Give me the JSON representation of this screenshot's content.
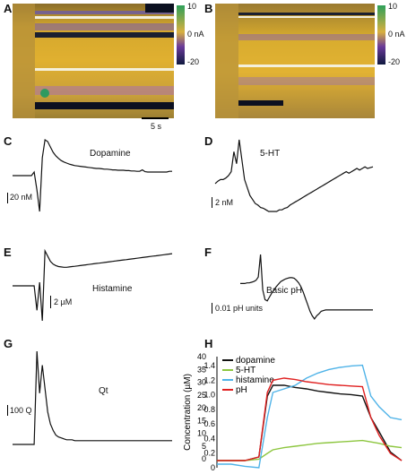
{
  "panels": {
    "A": {
      "label": "A",
      "time_scale": "5 s"
    },
    "B": {
      "label": "B"
    },
    "C": {
      "label": "C",
      "title": "Dopamine",
      "scale": "20 nM"
    },
    "D": {
      "label": "D",
      "title": "5-HT",
      "scale": "2 nM"
    },
    "E": {
      "label": "E",
      "title": "Histamine",
      "scale": "2 µM"
    },
    "F": {
      "label": "F",
      "title": "Basic pH",
      "scale": "0.01 pH units"
    },
    "G": {
      "label": "G",
      "title": "Qt",
      "scale": "100 Q"
    },
    "H": {
      "label": "H"
    }
  },
  "colorbar": {
    "top": "10",
    "mid": "0 nA",
    "bottom": "-20"
  },
  "chart_data": [
    {
      "type": "line",
      "title": "Dopamine",
      "values": [
        0,
        0,
        0,
        0,
        0,
        0,
        0,
        0,
        0.1,
        -0.4,
        -1.0,
        0.5,
        1.0,
        0.95,
        0.8,
        0.65,
        0.55,
        0.48,
        0.42,
        0.38,
        0.35,
        0.32,
        0.3,
        0.28,
        0.27,
        0.26,
        0.25,
        0.24,
        0.23,
        0.22,
        0.21,
        0.2,
        0.2,
        0.19,
        0.18,
        0.18,
        0.17,
        0.16,
        0.16,
        0.15,
        0.15,
        0.15,
        0.14,
        0.14,
        0.13,
        0.13,
        0.12,
        0.12,
        0.16,
        0.11,
        0.1,
        0.1,
        0.1,
        0.1,
        0.1,
        0.1,
        0.1,
        0.1,
        0.12,
        0.12
      ]
    },
    {
      "type": "line",
      "title": "5-HT",
      "values": [
        0.45,
        0.48,
        0.5,
        0.5,
        0.52,
        0.55,
        0.6,
        0.85,
        0.7,
        1.0,
        0.75,
        0.5,
        0.4,
        0.3,
        0.25,
        0.2,
        0.18,
        0.15,
        0.14,
        0.12,
        0.1,
        0.1,
        0.1,
        0.1,
        0.12,
        0.12,
        0.14,
        0.15,
        0.18,
        0.2,
        0.22,
        0.24,
        0.26,
        0.28,
        0.3,
        0.32,
        0.34,
        0.36,
        0.38,
        0.4,
        0.42,
        0.44,
        0.46,
        0.48,
        0.5,
        0.52,
        0.54,
        0.56,
        0.58,
        0.6,
        0.58,
        0.6,
        0.62,
        0.64,
        0.62,
        0.64,
        0.66,
        0.64,
        0.65,
        0.66
      ]
    },
    {
      "type": "line",
      "title": "Histamine",
      "values": [
        0,
        0,
        0,
        0,
        0,
        0,
        0,
        0,
        0,
        -0.7,
        0.1,
        -1.0,
        1.0,
        0.85,
        0.7,
        0.62,
        0.58,
        0.55,
        0.54,
        0.53,
        0.53,
        0.54,
        0.55,
        0.56,
        0.57,
        0.58,
        0.59,
        0.6,
        0.61,
        0.62,
        0.63,
        0.64,
        0.65,
        0.66,
        0.67,
        0.68,
        0.69,
        0.7,
        0.71,
        0.72,
        0.73,
        0.74,
        0.75,
        0.76,
        0.77,
        0.78,
        0.79,
        0.8,
        0.81,
        0.82,
        0.83,
        0.84,
        0.85,
        0.86,
        0.87,
        0.88,
        0.89,
        0.9,
        0.91,
        0.92
      ]
    },
    {
      "type": "line",
      "title": "Basic pH",
      "values": [
        0.55,
        0.55,
        0.55,
        0.56,
        0.56,
        0.57,
        0.58,
        0.6,
        0.65,
        1.0,
        0.45,
        0.3,
        0.28,
        0.34,
        0.4,
        0.45,
        0.5,
        0.54,
        0.58,
        0.6,
        0.62,
        0.63,
        0.64,
        0.64,
        0.63,
        0.6,
        0.56,
        0.5,
        0.42,
        0.32,
        0.22,
        0.12,
        0.05,
        0.0,
        0.05,
        0.08,
        0.12,
        0.13,
        0.14,
        0.14,
        0.14,
        0.14,
        0.14,
        0.14,
        0.14,
        0.14,
        0.14,
        0.14,
        0.14,
        0.14,
        0.14,
        0.14,
        0.14,
        0.14,
        0.14,
        0.14,
        0.14,
        0.14,
        0.14,
        0.14
      ]
    },
    {
      "type": "line",
      "title": "Qt",
      "values": [
        0,
        0,
        0,
        0,
        0,
        0,
        0,
        0,
        0,
        1.0,
        0.55,
        0.85,
        0.6,
        0.35,
        0.22,
        0.15,
        0.1,
        0.08,
        0.07,
        0.06,
        0.05,
        0.05,
        0.05,
        0.04,
        0.04,
        0.04,
        0.04,
        0.04,
        0.04,
        0.04,
        0.04,
        0.04,
        0.04,
        0.04,
        0.04,
        0.04,
        0.04,
        0.04,
        0.04,
        0.04,
        0.04,
        0.04,
        0.04,
        0.04,
        0.04,
        0.04,
        0.04,
        0.04,
        0.04,
        0.04,
        0.04,
        0.04,
        0.04,
        0.04,
        0.04,
        0.04,
        0.04,
        0.04,
        0.04,
        0.04
      ]
    },
    {
      "type": "line",
      "ylabel": "Concentration (µM)",
      "yticks_left": [
        "40",
        "35",
        "30",
        "25",
        "20",
        "15",
        "10",
        "5",
        "0"
      ],
      "yticks_right": [
        "1.4",
        "1.2",
        "1.0",
        "0.8",
        "0.6",
        "0.4",
        "0.2",
        "0"
      ],
      "x": [
        0,
        5,
        10,
        15,
        18,
        20,
        24,
        28,
        32,
        36,
        40,
        44,
        48,
        52,
        55,
        58,
        62,
        66
      ],
      "series": [
        {
          "name": "dopamine",
          "color": "#111111",
          "values": [
            0,
            0,
            0,
            0.05,
            0.9,
            1.05,
            1.05,
            1.02,
            1.0,
            0.97,
            0.95,
            0.93,
            0.92,
            0.9,
            0.6,
            0.4,
            0.12,
            0
          ]
        },
        {
          "name": "5-HT",
          "color": "#8dc63f",
          "values": [
            0,
            0,
            0,
            0.02,
            0.1,
            0.15,
            0.18,
            0.2,
            0.22,
            0.24,
            0.25,
            0.26,
            0.27,
            0.28,
            0.26,
            0.24,
            0.2,
            0.18
          ]
        },
        {
          "name": "histamine",
          "color": "#4fb3e8",
          "values": [
            -0.05,
            -0.05,
            -0.08,
            -0.1,
            0.6,
            0.95,
            1.0,
            1.05,
            1.15,
            1.22,
            1.27,
            1.3,
            1.32,
            1.33,
            0.9,
            0.75,
            0.6,
            0.57
          ]
        },
        {
          "name": "pH",
          "color": "#e02020",
          "values": [
            0,
            0,
            0,
            0.05,
            0.95,
            1.12,
            1.15,
            1.13,
            1.1,
            1.08,
            1.06,
            1.05,
            1.04,
            1.03,
            0.6,
            0.35,
            0.1,
            0
          ]
        }
      ],
      "ylim": [
        -0.1,
        1.45
      ]
    }
  ]
}
